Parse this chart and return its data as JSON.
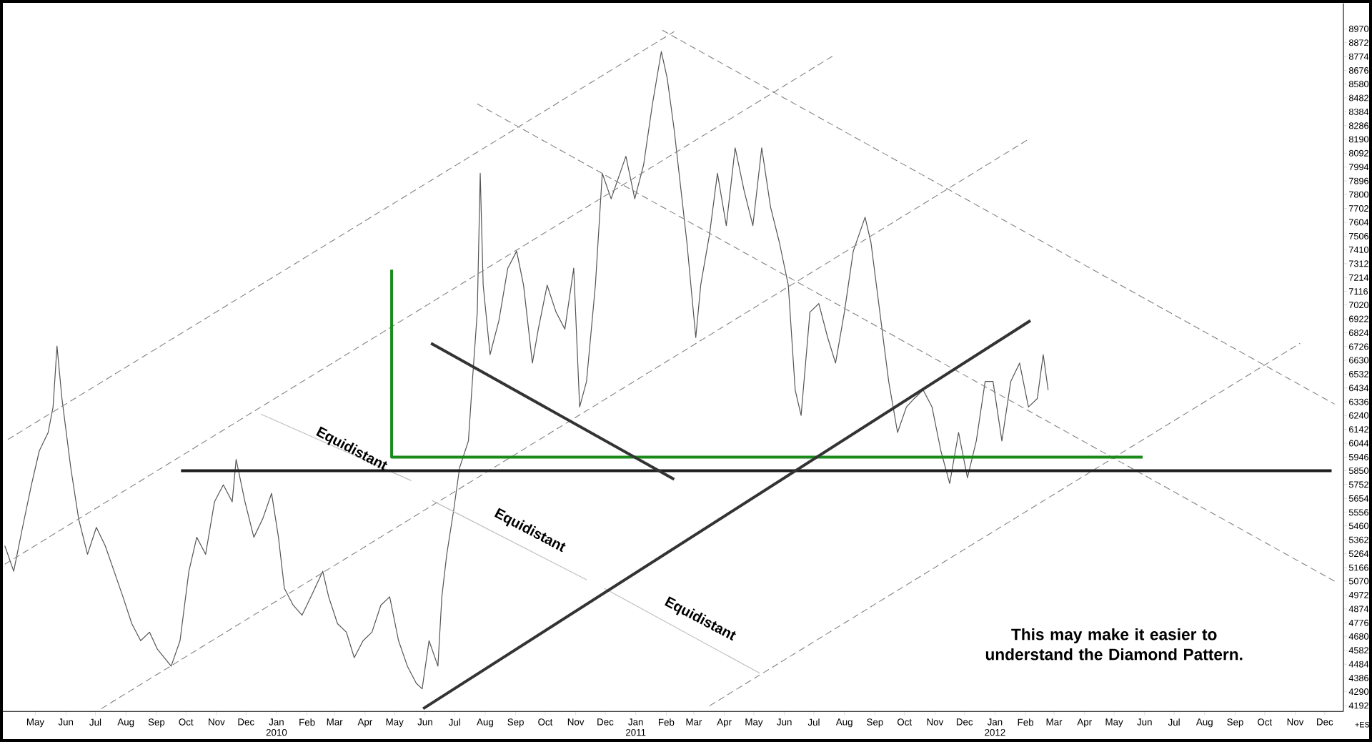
{
  "chart_data": {
    "type": "line",
    "xlim": [
      "2009-03-29",
      "2012-12-20"
    ],
    "ylim": [
      4150,
      9150
    ],
    "yticks": [
      8970,
      8872,
      8774,
      8676,
      8580,
      8482,
      8384,
      8286,
      8190,
      8092,
      7994,
      7896,
      7800,
      7702,
      7604,
      7506,
      7410,
      7312,
      7214,
      7116,
      7020,
      6922,
      6824,
      6726,
      6630,
      6532,
      6434,
      6336,
      6240,
      6142,
      6044,
      5946,
      5850,
      5752,
      5654,
      5556,
      5460,
      5362,
      5264,
      5166,
      5070,
      4972,
      4874,
      4776,
      4680,
      4582,
      4484,
      4386,
      4290,
      4192
    ],
    "xticks": [
      {
        "value": "2009-05-01",
        "label": "May"
      },
      {
        "value": "2009-06-01",
        "label": "Jun"
      },
      {
        "value": "2009-07-01",
        "label": "Jul"
      },
      {
        "value": "2009-08-01",
        "label": "Aug"
      },
      {
        "value": "2009-09-01",
        "label": "Sep"
      },
      {
        "value": "2009-10-01",
        "label": "Oct"
      },
      {
        "value": "2009-11-01",
        "label": "Nov"
      },
      {
        "value": "2009-12-01",
        "label": "Dec"
      },
      {
        "value": "2010-01-01",
        "label": "Jan 2010"
      },
      {
        "value": "2010-02-01",
        "label": "Feb"
      },
      {
        "value": "2010-03-01",
        "label": "Mar"
      },
      {
        "value": "2010-04-01",
        "label": "Apr"
      },
      {
        "value": "2010-05-01",
        "label": "May"
      },
      {
        "value": "2010-06-01",
        "label": "Jun"
      },
      {
        "value": "2010-07-01",
        "label": "Jul"
      },
      {
        "value": "2010-08-01",
        "label": "Aug"
      },
      {
        "value": "2010-09-01",
        "label": "Sep"
      },
      {
        "value": "2010-10-01",
        "label": "Oct"
      },
      {
        "value": "2010-11-01",
        "label": "Nov"
      },
      {
        "value": "2010-12-01",
        "label": "Dec"
      },
      {
        "value": "2011-01-01",
        "label": "Jan 2011"
      },
      {
        "value": "2011-02-01",
        "label": "Feb"
      },
      {
        "value": "2011-03-01",
        "label": "Mar"
      },
      {
        "value": "2011-04-01",
        "label": "Apr"
      },
      {
        "value": "2011-05-01",
        "label": "May"
      },
      {
        "value": "2011-06-01",
        "label": "Jun"
      },
      {
        "value": "2011-07-01",
        "label": "Jul"
      },
      {
        "value": "2011-08-01",
        "label": "Aug"
      },
      {
        "value": "2011-09-01",
        "label": "Sep"
      },
      {
        "value": "2011-10-01",
        "label": "Oct"
      },
      {
        "value": "2011-11-01",
        "label": "Nov"
      },
      {
        "value": "2011-12-01",
        "label": "Dec"
      },
      {
        "value": "2012-01-01",
        "label": "Jan 2012"
      },
      {
        "value": "2012-02-01",
        "label": "Feb"
      },
      {
        "value": "2012-03-01",
        "label": "Mar"
      },
      {
        "value": "2012-04-01",
        "label": "Apr"
      },
      {
        "value": "2012-05-01",
        "label": "May"
      },
      {
        "value": "2012-06-01",
        "label": "Jun"
      },
      {
        "value": "2012-07-01",
        "label": "Jul"
      },
      {
        "value": "2012-08-01",
        "label": "Aug"
      },
      {
        "value": "2012-09-01",
        "label": "Sep"
      },
      {
        "value": "2012-10-01",
        "label": "Oct"
      },
      {
        "value": "2012-11-01",
        "label": "Nov"
      },
      {
        "value": "2012-12-01",
        "label": "Dec"
      }
    ],
    "series": [
      {
        "color": "#555555",
        "x": [
          "2009-03-31",
          "2009-04-09",
          "2009-04-18",
          "2009-04-27",
          "2009-05-05",
          "2009-05-14",
          "2009-05-19",
          "2009-05-23",
          "2009-05-28",
          "2009-06-06",
          "2009-06-14",
          "2009-06-23",
          "2009-07-02",
          "2009-07-11",
          "2009-07-20",
          "2009-07-29",
          "2009-08-07",
          "2009-08-16",
          "2009-08-25",
          "2009-09-02",
          "2009-09-16",
          "2009-09-25",
          "2009-10-04",
          "2009-10-12",
          "2009-10-21",
          "2009-10-30",
          "2009-11-08",
          "2009-11-17",
          "2009-11-21",
          "2009-11-30",
          "2009-12-09",
          "2009-12-18",
          "2009-12-27",
          "2010-01-03",
          "2010-01-09",
          "2010-01-18",
          "2010-01-27",
          "2010-02-05",
          "2010-02-17",
          "2010-02-23",
          "2010-03-04",
          "2010-03-13",
          "2010-03-21",
          "2010-03-30",
          "2010-04-08",
          "2010-04-17",
          "2010-04-26",
          "2010-05-05",
          "2010-05-14",
          "2010-05-23",
          "2010-05-29",
          "2010-06-05",
          "2010-06-14",
          "2010-06-18",
          "2010-06-23",
          "2010-06-30",
          "2010-07-06",
          "2010-07-15",
          "2010-07-19",
          "2010-07-24",
          "2010-07-27",
          "2010-07-30",
          "2010-08-06",
          "2010-08-15",
          "2010-08-24",
          "2010-09-02",
          "2010-09-09",
          "2010-09-18",
          "2010-09-24",
          "2010-10-03",
          "2010-10-12",
          "2010-10-21",
          "2010-10-30",
          "2010-11-05",
          "2010-11-12",
          "2010-11-21",
          "2010-11-28",
          "2010-12-07",
          "2010-12-16",
          "2010-12-22",
          "2010-12-31",
          "2011-01-09",
          "2011-01-18",
          "2011-01-27",
          "2011-02-02",
          "2011-02-09",
          "2011-02-16",
          "2011-02-22",
          "2011-03-03",
          "2011-03-08",
          "2011-03-17",
          "2011-03-25",
          "2011-04-03",
          "2011-04-12",
          "2011-04-21",
          "2011-04-30",
          "2011-05-09",
          "2011-05-18",
          "2011-05-27",
          "2011-06-05",
          "2011-06-12",
          "2011-06-18",
          "2011-06-27",
          "2011-07-06",
          "2011-07-15",
          "2011-07-23",
          "2011-08-01",
          "2011-08-10",
          "2011-08-22",
          "2011-08-28",
          "2011-09-06",
          "2011-09-15",
          "2011-09-24",
          "2011-10-03",
          "2011-10-11",
          "2011-10-20",
          "2011-10-29",
          "2011-11-07",
          "2011-11-16",
          "2011-11-25",
          "2011-12-04",
          "2011-12-13",
          "2011-12-22",
          "2011-12-30",
          "2012-01-08",
          "2012-01-17",
          "2012-01-26",
          "2012-02-04",
          "2012-02-13",
          "2012-02-19",
          "2012-02-24"
        ],
        "values": [
          5320,
          5140,
          5450,
          5750,
          5990,
          6120,
          6300,
          6730,
          6360,
          5870,
          5510,
          5260,
          5450,
          5320,
          5140,
          4960,
          4770,
          4650,
          4710,
          4590,
          4470,
          4650,
          5140,
          5380,
          5260,
          5630,
          5750,
          5630,
          5930,
          5630,
          5380,
          5510,
          5690,
          5380,
          5020,
          4900,
          4830,
          4960,
          5140,
          4960,
          4770,
          4710,
          4530,
          4650,
          4710,
          4900,
          4960,
          4650,
          4470,
          4350,
          4310,
          4650,
          4470,
          4960,
          5260,
          5570,
          5870,
          6060,
          6480,
          6970,
          7950,
          7160,
          6670,
          6910,
          7280,
          7400,
          7160,
          6610,
          6850,
          7160,
          6970,
          6850,
          7280,
          6300,
          6480,
          7160,
          7950,
          7770,
          7950,
          8070,
          7770,
          8010,
          8440,
          8810,
          8620,
          8260,
          7830,
          7460,
          6790,
          7160,
          7520,
          7950,
          7580,
          8130,
          7830,
          7580,
          8130,
          7710,
          7460,
          7160,
          6420,
          6240,
          6970,
          7030,
          6790,
          6610,
          6970,
          7400,
          7640,
          7460,
          6970,
          6480,
          6120,
          6300,
          6360,
          6420,
          6300,
          5990,
          5760,
          6120,
          5800,
          6060,
          6480,
          6480,
          6060,
          6480,
          6610,
          6300,
          6360,
          6670,
          6420
        ]
      },
      {
        "color": "#7f7f7f",
        "line_style": "dashed",
        "x": [
          "2009-04-03",
          "2011-02-09"
        ],
        "values": [
          6070,
          8950
        ]
      },
      {
        "color": "#7f7f7f",
        "line_style": "dashed",
        "x": [
          "2009-03-31",
          "2011-07-23"
        ],
        "values": [
          5190,
          8790
        ]
      },
      {
        "color": "#7f7f7f",
        "line_style": "dashed",
        "x": [
          "2009-07-07",
          "2012-02-04"
        ],
        "values": [
          4170,
          8190
        ]
      },
      {
        "color": "#7f7f7f",
        "line_style": "dashed",
        "x": [
          "2011-03-17",
          "2012-11-06"
        ],
        "values": [
          4190,
          6750
        ]
      },
      {
        "color": "#7f7f7f",
        "line_style": "dashed",
        "x": [
          "2011-01-28",
          "2012-12-11"
        ],
        "values": [
          8960,
          6320
        ]
      },
      {
        "color": "#7f7f7f",
        "line_style": "dashed",
        "x": [
          "2010-07-24",
          "2012-12-11"
        ],
        "values": [
          8440,
          5070
        ]
      },
      {
        "color": "#bfbfbf",
        "x": [
          "2009-12-16",
          "2010-05-18",
          "2010-05-28",
          "2010-06-08",
          "2010-11-12",
          "2010-11-21",
          "2010-11-30",
          "2011-05-07"
        ],
        "values": [
          6250,
          5780,
          null,
          5640,
          5080,
          null,
          5020,
          4420
        ]
      },
      {
        "color": "#1e1e1e",
        "x": [
          "2009-09-26",
          "2012-12-08"
        ],
        "values": [
          5850,
          5850
        ]
      },
      {
        "color": "#1a8a1a",
        "x": [
          "2010-04-28",
          "2010-04-28",
          "2012-05-30"
        ],
        "values": [
          7270,
          5946,
          5946
        ]
      },
      {
        "color": "#333333",
        "x": [
          "2010-06-07",
          "2011-02-09"
        ],
        "values": [
          6750,
          5790
        ]
      },
      {
        "color": "#333333",
        "x": [
          "2010-05-30",
          "2012-02-06"
        ],
        "values": [
          4170,
          6910
        ]
      }
    ],
    "annotations": [
      "**Equidistant**",
      "**Equidistant**",
      "**Equidistant**",
      "**This may make it easier to understand the Diamond Pattern.**",
      "+ES"
    ]
  }
}
